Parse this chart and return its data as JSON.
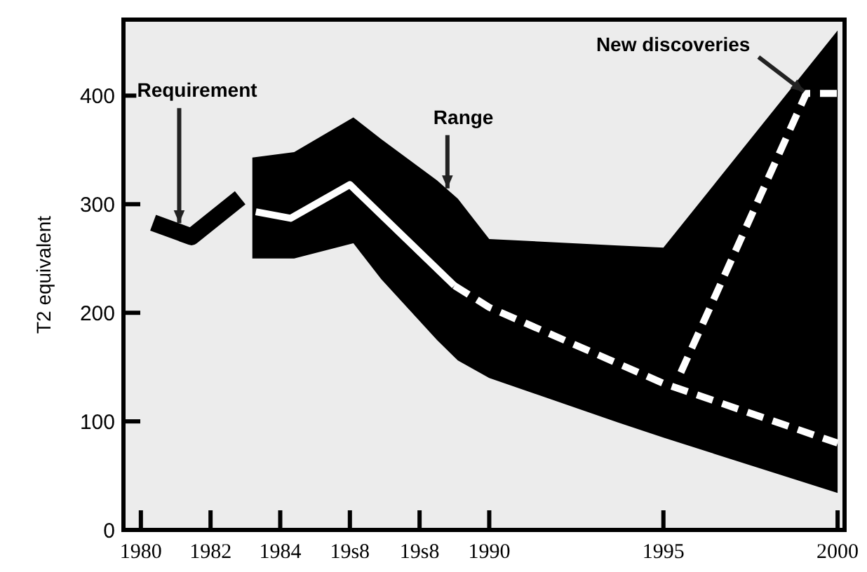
{
  "chart_data": {
    "type": "line",
    "ylabel": "T2 equivalent",
    "xlim": [
      1979.5,
      2000.2
    ],
    "xticks": [
      1980,
      1982,
      1984,
      {
        "value": 1986,
        "label": "19s8"
      },
      {
        "value": 1988,
        "label": "19s8"
      },
      1990,
      1995,
      2000
    ],
    "ylim": [
      0,
      470
    ],
    "yticks": [
      0,
      100,
      200,
      300,
      400
    ],
    "grid": false,
    "series": [
      {
        "type": "area",
        "color": "#000000",
        "x": [
          1983.2,
          1984.4,
          1986.1,
          1986.9,
          1988.5,
          1989.1,
          1990,
          1993.7,
          1995,
          2000
        ],
        "values": [
          null,
          null,
          null,
          null,
          null,
          null,
          null,
          null,
          null,
          null
        ],
        "lower": [
          250,
          250,
          264,
          231,
          175,
          156,
          140,
          99,
          85,
          34
        ],
        "upper": [
          343,
          348,
          380,
          360,
          322,
          305,
          268,
          262,
          260,
          460
        ]
      },
      {
        "color": "#000000",
        "line_style": "solid",
        "x": [
          1980.35,
          1981.45,
          1982.85
        ],
        "values": [
          283,
          270,
          306
        ]
      },
      {
        "color": "#ffffff",
        "line_style": "solid",
        "x": [
          1983.3,
          1984.3,
          1986.0,
          1989.0
        ],
        "values": [
          293,
          287,
          318,
          225
        ]
      },
      {
        "color": "#ffffff",
        "line_style": "dashed",
        "x": [
          1989.0,
          1990,
          1995,
          2000
        ],
        "values": [
          225,
          205,
          135,
          80
        ]
      },
      {
        "color": "#ffffff",
        "line_style": "dashed",
        "x": [
          1995.5,
          1999.1,
          2000
        ],
        "values": [
          145,
          402,
          402
        ]
      }
    ],
    "annotations": [
      {
        "text": "Requirement",
        "x": 1981.1,
        "y": 280
      },
      {
        "text": "Range",
        "x": 1988.8,
        "y": 312
      },
      {
        "text": "New discoveries",
        "x": 1999.1,
        "y": 402
      }
    ]
  }
}
